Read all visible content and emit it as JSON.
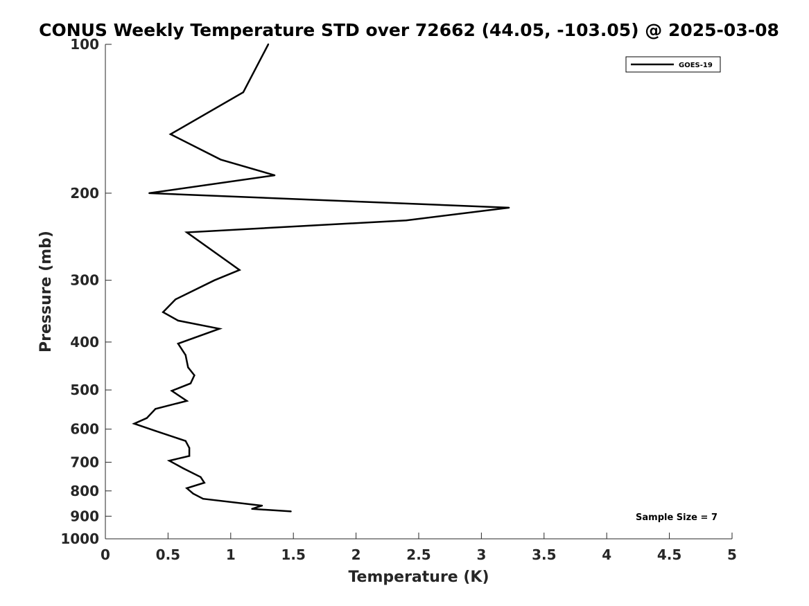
{
  "chart_data": {
    "type": "line",
    "title": "CONUS Weekly Temperature STD over 72662 (44.05, -103.05) @ 2025-03-08",
    "xlabel": "Temperature (K)",
    "ylabel": "Pressure (mb)",
    "xlim": [
      0,
      5
    ],
    "ylim": [
      100,
      1000
    ],
    "yscale": "log",
    "yreversed": true,
    "xticks": [
      "0",
      "0.5",
      "1",
      "1.5",
      "2",
      "2.5",
      "3",
      "3.5",
      "4",
      "4.5",
      "5"
    ],
    "yticks": [
      "100",
      "200",
      "300",
      "400",
      "500",
      "600",
      "700",
      "800",
      "900",
      "1000"
    ],
    "grid": false,
    "legend_position": "top-right",
    "annotation": "Sample Size = 7",
    "series": [
      {
        "name": "GOES-19",
        "color": "#000000",
        "points": [
          {
            "x": 1.3,
            "y": 100
          },
          {
            "x": 1.1,
            "y": 125
          },
          {
            "x": 0.52,
            "y": 152
          },
          {
            "x": 0.92,
            "y": 171
          },
          {
            "x": 1.35,
            "y": 184
          },
          {
            "x": 0.35,
            "y": 200
          },
          {
            "x": 3.22,
            "y": 214
          },
          {
            "x": 2.4,
            "y": 227
          },
          {
            "x": 0.65,
            "y": 240
          },
          {
            "x": 1.07,
            "y": 286
          },
          {
            "x": 0.87,
            "y": 300
          },
          {
            "x": 0.56,
            "y": 328
          },
          {
            "x": 0.46,
            "y": 348
          },
          {
            "x": 0.58,
            "y": 362
          },
          {
            "x": 0.91,
            "y": 376
          },
          {
            "x": 0.58,
            "y": 403
          },
          {
            "x": 0.64,
            "y": 425
          },
          {
            "x": 0.66,
            "y": 450
          },
          {
            "x": 0.71,
            "y": 467
          },
          {
            "x": 0.68,
            "y": 485
          },
          {
            "x": 0.53,
            "y": 502
          },
          {
            "x": 0.65,
            "y": 526
          },
          {
            "x": 0.4,
            "y": 546
          },
          {
            "x": 0.33,
            "y": 570
          },
          {
            "x": 0.23,
            "y": 585
          },
          {
            "x": 0.4,
            "y": 605
          },
          {
            "x": 0.64,
            "y": 634
          },
          {
            "x": 0.67,
            "y": 655
          },
          {
            "x": 0.67,
            "y": 680
          },
          {
            "x": 0.51,
            "y": 695
          },
          {
            "x": 0.62,
            "y": 720
          },
          {
            "x": 0.76,
            "y": 750
          },
          {
            "x": 0.79,
            "y": 770
          },
          {
            "x": 0.65,
            "y": 790
          },
          {
            "x": 0.7,
            "y": 810
          },
          {
            "x": 0.78,
            "y": 830
          },
          {
            "x": 1.25,
            "y": 857
          },
          {
            "x": 1.17,
            "y": 870
          },
          {
            "x": 1.48,
            "y": 880
          }
        ]
      }
    ]
  }
}
